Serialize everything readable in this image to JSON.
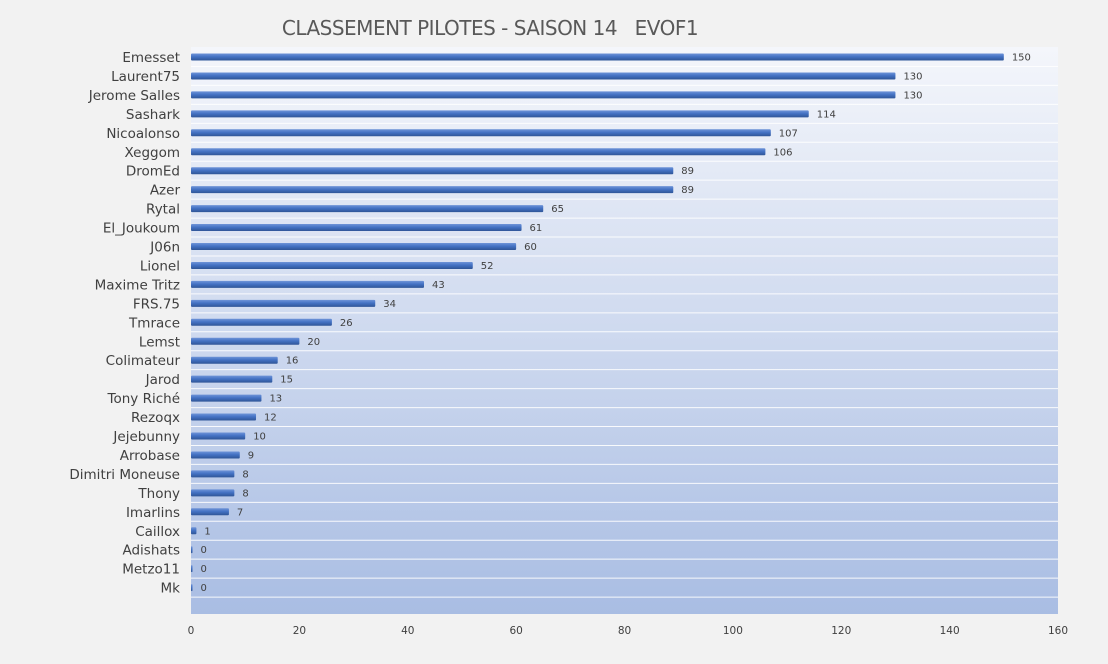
{
  "chart_data": {
    "type": "bar",
    "orientation": "horizontal",
    "title": "CLASSEMENT PILOTES - SAISON 14   EVOF1",
    "xlabel": "",
    "ylabel": "",
    "xlim": [
      0,
      160
    ],
    "x_ticks": [
      "0",
      "20",
      "40",
      "60",
      "80",
      "100",
      "120",
      "140",
      "160"
    ],
    "grid": "horizontal lines between categories",
    "legend": "none",
    "categories": [
      "Emesset",
      "Laurent75",
      "Jerome Salles",
      "Sashark",
      "Nicoalonso",
      "Xeggom",
      "DromEd",
      "Azer",
      "Rytal",
      "El_Joukoum",
      "J06n",
      "Lionel",
      "Maxime Tritz",
      "FRS.75",
      "Tmrace",
      "Lemst",
      "Colimateur",
      "Jarod",
      "Tony Riché",
      "Rezoqx",
      "Jejebunny",
      "Arrobase",
      "Dimitri Moneuse",
      "Thony",
      "Imarlins",
      "Caillox",
      "Adishats",
      "Metzo11",
      "Mk"
    ],
    "values": [
      150,
      130,
      130,
      114,
      107,
      106,
      89,
      89,
      65,
      61,
      60,
      52,
      43,
      34,
      26,
      20,
      16,
      15,
      13,
      12,
      10,
      9,
      8,
      8,
      7,
      1,
      0,
      0,
      0
    ],
    "data_labels": [
      "150",
      "130",
      "130",
      "114",
      "107",
      "106",
      "89",
      "89",
      "65",
      "61",
      "60",
      "52",
      "43",
      "34",
      "26",
      "20",
      "16",
      "15",
      "13",
      "12",
      "10",
      "9",
      "8",
      "8",
      "7",
      "1",
      "0",
      "0",
      "0"
    ],
    "colors": {
      "bar": "#4472c4",
      "bar_highlight": "#6f94d8",
      "plot_bg_top": "#f4f6fb",
      "plot_bg_bottom": "#a9bde3",
      "grid": "#ffffff",
      "text": "#404040",
      "title": "#595959"
    }
  }
}
